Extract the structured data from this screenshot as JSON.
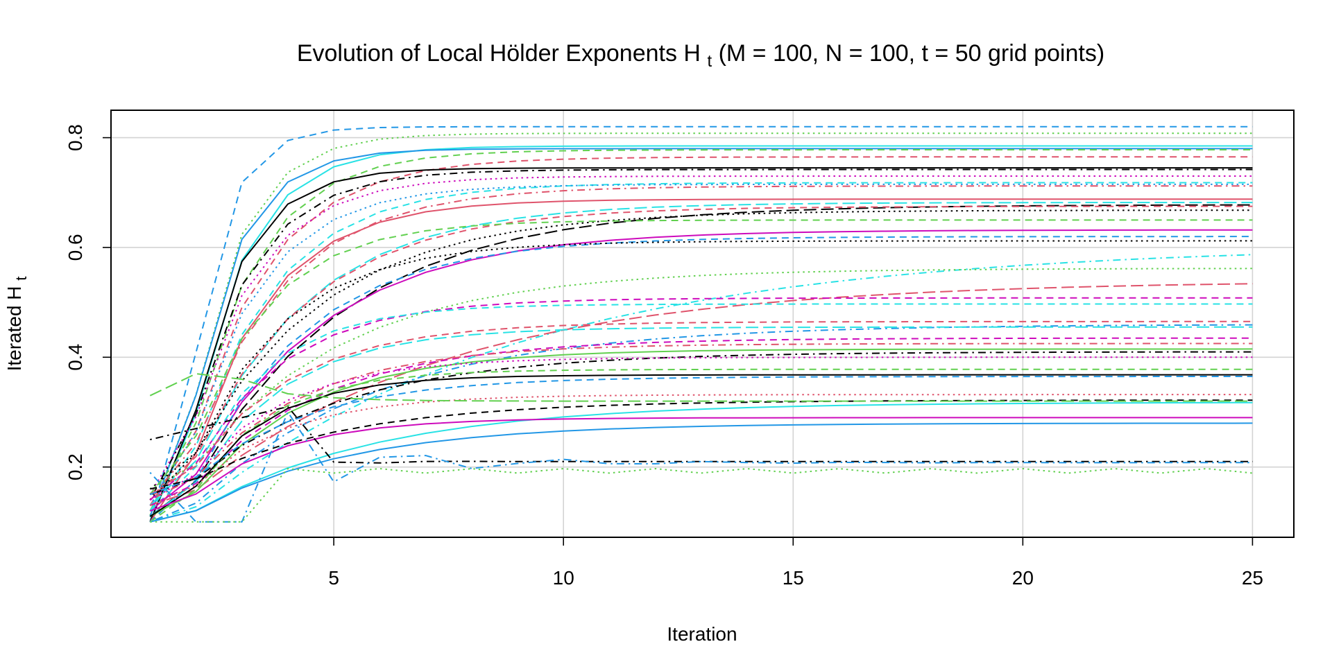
{
  "chart_data": {
    "type": "line",
    "title": "Evolution of Local Hölder Exponents",
    "title_symbol": "H",
    "title_symbol_sub": "t",
    "title_rest": " (M = 100, N = 100, t = 50 grid points)",
    "xlabel": "Iteration",
    "ylabel": "Iterated H",
    "ylabel_sub": "t",
    "xlim": [
      0.15,
      25.9
    ],
    "ylim": [
      0.072,
      0.85
    ],
    "xticks": [
      "5",
      "10",
      "15",
      "20",
      "25"
    ],
    "yticks": [
      "0.2",
      "0.4",
      "0.6",
      "0.8"
    ],
    "grid": true,
    "legend": "none",
    "x": [
      1,
      2,
      3,
      4,
      5,
      6,
      7,
      8,
      9,
      10,
      11,
      12,
      13,
      14,
      15,
      16,
      17,
      18,
      19,
      20,
      21,
      22,
      23,
      24,
      25
    ],
    "series": [
      {
        "color": "#2297E6",
        "dash": "dashed",
        "start": 0.1,
        "final": 0.82,
        "rate": 1.4,
        "pattern": "late"
      },
      {
        "color": "#61D04F",
        "dash": "dotted",
        "start": 0.112,
        "final": 0.808,
        "rate": 0.95,
        "pattern": "late"
      },
      {
        "color": "#28E2E5",
        "dash": "solid",
        "start": 0.1,
        "final": 0.785,
        "rate": 0.85,
        "pattern": "late"
      },
      {
        "color": "#2297E6",
        "dash": "solid",
        "start": 0.11,
        "final": 0.78,
        "rate": 1.0,
        "pattern": "late"
      },
      {
        "color": "#61D04F",
        "dash": "dashed",
        "start": 0.12,
        "final": 0.778,
        "rate": 0.7,
        "pattern": "late"
      },
      {
        "color": "#DF536B",
        "dash": "dashed",
        "start": 0.13,
        "final": 0.765,
        "rate": 0.6,
        "pattern": "late"
      },
      {
        "color": "#000000",
        "dash": "solid",
        "start": 0.1,
        "final": 0.745,
        "rate": 0.95,
        "pattern": "late"
      },
      {
        "color": "#000000",
        "dash": "dashdot",
        "start": 0.14,
        "final": 0.742,
        "rate": 0.75,
        "pattern": "late"
      },
      {
        "color": "#CD0BBC",
        "dash": "dotted",
        "start": 0.15,
        "final": 0.73,
        "rate": 0.7,
        "pattern": "late"
      },
      {
        "color": "#28E2E5",
        "dash": "dashed",
        "start": 0.12,
        "final": 0.718,
        "rate": 0.55,
        "pattern": "late"
      },
      {
        "color": "#2297E6",
        "dash": "dotted",
        "start": 0.13,
        "final": 0.715,
        "rate": 0.65,
        "pattern": "late"
      },
      {
        "color": "#DF536B",
        "dash": "dashdot",
        "start": 0.14,
        "final": 0.712,
        "rate": 0.5,
        "pattern": "late"
      },
      {
        "color": "#DF536B",
        "dash": "solid",
        "start": 0.1,
        "final": 0.688,
        "rate": 0.6,
        "pattern": "late"
      },
      {
        "color": "#28E2E5",
        "dash": "longdash",
        "start": 0.13,
        "final": 0.682,
        "rate": 0.4,
        "pattern": "late"
      },
      {
        "color": "#000000",
        "dash": "longdash",
        "start": 0.11,
        "final": 0.678,
        "rate": 0.3,
        "pattern": "late"
      },
      {
        "color": "#DF536B",
        "dash": "dashed",
        "start": 0.14,
        "final": 0.675,
        "rate": 0.4,
        "pattern": "late"
      },
      {
        "color": "#000000",
        "dash": "dotted",
        "start": 0.16,
        "final": 0.668,
        "rate": 0.35,
        "pattern": "late"
      },
      {
        "color": "#61D04F",
        "dash": "dashed",
        "start": 0.15,
        "final": 0.65,
        "rate": 0.6,
        "pattern": "late"
      },
      {
        "color": "#CD0BBC",
        "dash": "solid",
        "start": 0.12,
        "final": 0.632,
        "rate": 0.35,
        "pattern": "late"
      },
      {
        "color": "#2297E6",
        "dash": "dashed",
        "start": 0.1,
        "final": 0.62,
        "rate": 0.4,
        "pattern": "late"
      },
      {
        "color": "#000000",
        "dash": "dotted",
        "start": 0.14,
        "final": 0.612,
        "rate": 0.5,
        "pattern": "late"
      },
      {
        "color": "#28E2E5",
        "dash": "dashdot",
        "start": 0.1,
        "final": 0.606,
        "rate": 0.14,
        "pattern": "late"
      },
      {
        "color": "#61D04F",
        "dash": "dotted",
        "start": 0.16,
        "final": 0.562,
        "rate": 0.3,
        "pattern": "late"
      },
      {
        "color": "#DF536B",
        "dash": "longdash",
        "start": 0.13,
        "final": 0.54,
        "rate": 0.18,
        "pattern": "late"
      },
      {
        "color": "#CD0BBC",
        "dash": "dashed",
        "start": 0.14,
        "final": 0.508,
        "rate": 0.5,
        "pattern": "late"
      },
      {
        "color": "#28E2E5",
        "dash": "dashed",
        "start": 0.12,
        "final": 0.497,
        "rate": 0.6,
        "pattern": "late"
      },
      {
        "color": "#DF536B",
        "dash": "dashed",
        "start": 0.15,
        "final": 0.465,
        "rate": 0.45,
        "pattern": "late"
      },
      {
        "color": "#2297E6",
        "dash": "dashdot",
        "start": 0.1,
        "final": 0.46,
        "rate": 0.25,
        "pattern": "late"
      },
      {
        "color": "#28E2E5",
        "dash": "longdash",
        "start": 0.11,
        "final": 0.455,
        "rate": 0.5,
        "pattern": "late"
      },
      {
        "color": "#CD0BBC",
        "dash": "dashed",
        "start": 0.13,
        "final": 0.435,
        "rate": 0.35,
        "pattern": "late"
      },
      {
        "color": "#DF536B",
        "dash": "dashdot",
        "start": 0.14,
        "final": 0.425,
        "rate": 0.4,
        "pattern": "late"
      },
      {
        "color": "#61D04F",
        "dash": "solid",
        "start": 0.11,
        "final": 0.415,
        "rate": 0.4,
        "pattern": "late"
      },
      {
        "color": "#000000",
        "dash": "dashdot",
        "start": 0.15,
        "final": 0.41,
        "rate": 0.3,
        "pattern": "late"
      },
      {
        "color": "#CD0BBC",
        "dash": "dotted",
        "start": 0.14,
        "final": 0.4,
        "rate": 0.5,
        "pattern": "late"
      },
      {
        "color": "#61D04F",
        "dash": "dashed",
        "start": 0.1,
        "final": 0.378,
        "rate": 0.6,
        "pattern": "late"
      },
      {
        "color": "#000000",
        "dash": "solid",
        "start": 0.11,
        "final": 0.368,
        "rate": 0.6,
        "pattern": "late"
      },
      {
        "color": "#2297E6",
        "dash": "dashed",
        "start": 0.15,
        "final": 0.365,
        "rate": 0.4,
        "pattern": "late"
      },
      {
        "color": "#DF536B",
        "dash": "dotted",
        "start": 0.13,
        "final": 0.332,
        "rate": 0.5,
        "pattern": "late"
      },
      {
        "color": "#000000",
        "dash": "dashed",
        "start": 0.16,
        "final": 0.322,
        "rate": 0.3,
        "pattern": "late"
      },
      {
        "color": "#61D04F",
        "dash": "longdash",
        "start": 0.33,
        "final": 0.32,
        "rate": 0.6,
        "pattern": "hump"
      },
      {
        "color": "#28E2E5",
        "dash": "solid",
        "start": 0.1,
        "final": 0.318,
        "rate": 0.25,
        "pattern": "late"
      },
      {
        "color": "#CD0BBC",
        "dash": "solid",
        "start": 0.12,
        "final": 0.29,
        "rate": 0.5,
        "pattern": "late"
      },
      {
        "color": "#2297E6",
        "dash": "solid",
        "start": 0.1,
        "final": 0.28,
        "rate": 0.3,
        "pattern": "late"
      },
      {
        "color": "#000000",
        "dash": "dashdot",
        "start": 0.25,
        "final": 0.21,
        "rate": 0.5,
        "pattern": "wave"
      },
      {
        "color": "#2297E6",
        "dash": "dashdot",
        "start": 0.19,
        "final": 0.208,
        "rate": 1.0,
        "pattern": "wave2"
      },
      {
        "color": "#61D04F",
        "dash": "dotted",
        "start": 0.1,
        "final": 0.193,
        "rate": 1.0,
        "pattern": "zigzag"
      }
    ]
  }
}
